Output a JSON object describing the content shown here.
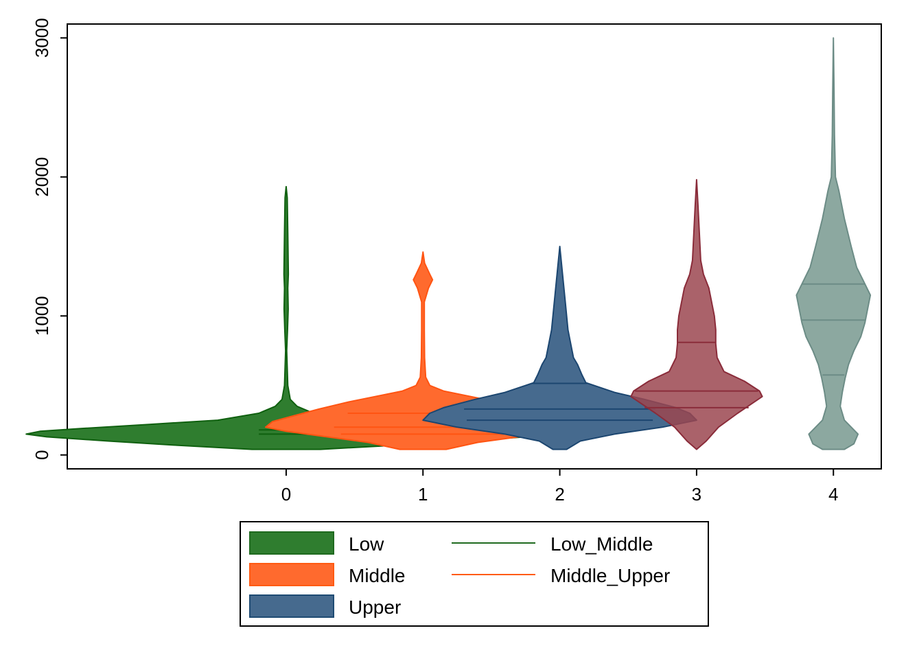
{
  "chart_data": {
    "type": "violin",
    "title": "",
    "xlabel": "",
    "ylabel": "",
    "xlim": [
      -1.6,
      4.35
    ],
    "ylim": [
      -100,
      3100
    ],
    "x_ticks": [
      0,
      1,
      2,
      3,
      4
    ],
    "y_ticks": [
      0,
      1000,
      2000,
      3000
    ],
    "grid": false,
    "legend_position": "bottom",
    "legend": [
      {
        "label": "Low",
        "kind": "fill",
        "color": "#2f7d2f",
        "edge": "#1f6a1f"
      },
      {
        "label": "Middle",
        "kind": "fill",
        "color": "#ff6a2e",
        "edge": "#ff5a12"
      },
      {
        "label": "Upper",
        "kind": "fill",
        "color": "#466a8e",
        "edge": "#1f4b73"
      },
      {
        "label": "Low_Middle",
        "kind": "line",
        "color": "#1f6a1f"
      },
      {
        "label": "Middle_Upper",
        "kind": "line",
        "color": "#ff5a12"
      }
    ],
    "violins": [
      {
        "x": 0,
        "fill": "#2f7d2f",
        "edge": "#0f600f",
        "opacity": 1.0,
        "profile": [
          [
            1930,
            0
          ],
          [
            1850,
            0.008
          ],
          [
            1600,
            0.012
          ],
          [
            1300,
            0.016
          ],
          [
            1200,
            0.012
          ],
          [
            1050,
            0.015
          ],
          [
            900,
            0.01
          ],
          [
            750,
            0.004
          ],
          [
            500,
            0.012
          ],
          [
            400,
            0.03
          ],
          [
            350,
            0.08
          ],
          [
            300,
            0.2
          ],
          [
            250,
            0.5
          ],
          [
            220,
            1.0
          ],
          [
            190,
            1.5
          ],
          [
            170,
            1.8
          ],
          [
            150,
            1.9
          ],
          [
            130,
            1.75
          ],
          [
            100,
            1.3
          ],
          [
            70,
            0.8
          ],
          [
            40,
            0.25
          ],
          [
            40,
            0
          ]
        ],
        "lines": [
          {
            "y": 180,
            "half": 0.2
          },
          {
            "y": 150,
            "half": 0.2
          }
        ]
      },
      {
        "x": 1,
        "fill": "#ff6a2e",
        "edge": "#ff5412",
        "opacity": 1.0,
        "profile": [
          [
            1460,
            0
          ],
          [
            1380,
            0.012
          ],
          [
            1300,
            0.05
          ],
          [
            1260,
            0.07
          ],
          [
            1200,
            0.04
          ],
          [
            1100,
            0.01
          ],
          [
            900,
            0.01
          ],
          [
            700,
            0.012
          ],
          [
            560,
            0.02
          ],
          [
            500,
            0.05
          ],
          [
            460,
            0.15
          ],
          [
            420,
            0.35
          ],
          [
            380,
            0.55
          ],
          [
            330,
            0.76
          ],
          [
            280,
            0.95
          ],
          [
            240,
            1.1
          ],
          [
            200,
            1.15
          ],
          [
            170,
            1.0
          ],
          [
            130,
            0.7
          ],
          [
            90,
            0.4
          ],
          [
            40,
            0.17
          ],
          [
            40,
            0
          ]
        ],
        "lines": [
          {
            "y": 300,
            "half": 0.55
          },
          {
            "y": 200,
            "half": 0.65
          },
          {
            "y": 150,
            "half": 0.6
          }
        ]
      },
      {
        "x": 2,
        "fill": "#466a8e",
        "edge": "#1c4670",
        "opacity": 1.0,
        "profile": [
          [
            1500,
            0
          ],
          [
            1300,
            0.02
          ],
          [
            1100,
            0.04
          ],
          [
            900,
            0.06
          ],
          [
            800,
            0.08
          ],
          [
            700,
            0.1
          ],
          [
            650,
            0.13
          ],
          [
            580,
            0.16
          ],
          [
            520,
            0.19
          ],
          [
            450,
            0.4
          ],
          [
            400,
            0.62
          ],
          [
            340,
            0.85
          ],
          [
            300,
            0.95
          ],
          [
            250,
            1.0
          ],
          [
            200,
            0.75
          ],
          [
            150,
            0.4
          ],
          [
            100,
            0.15
          ],
          [
            40,
            0.05
          ],
          [
            40,
            0
          ]
        ],
        "lines": [
          {
            "y": 515,
            "half": 0.2
          },
          {
            "y": 330,
            "half": 0.7
          },
          {
            "y": 250,
            "half": 0.68
          }
        ]
      },
      {
        "x": 3,
        "fill": "#9b4650",
        "edge": "#8a2c3a",
        "opacity": 0.85,
        "profile": [
          [
            1980,
            0
          ],
          [
            1800,
            0.01
          ],
          [
            1600,
            0.02
          ],
          [
            1400,
            0.03
          ],
          [
            1300,
            0.05
          ],
          [
            1200,
            0.09
          ],
          [
            1000,
            0.13
          ],
          [
            900,
            0.14
          ],
          [
            800,
            0.14
          ],
          [
            700,
            0.15
          ],
          [
            600,
            0.2
          ],
          [
            530,
            0.35
          ],
          [
            460,
            0.46
          ],
          [
            420,
            0.48
          ],
          [
            380,
            0.42
          ],
          [
            300,
            0.3
          ],
          [
            200,
            0.16
          ],
          [
            100,
            0.07
          ],
          [
            40,
            0
          ],
          [
            40,
            0
          ]
        ],
        "lines": [
          {
            "y": 810,
            "half": 0.14
          },
          {
            "y": 460,
            "half": 0.45
          },
          {
            "y": 340,
            "half": 0.38
          }
        ]
      },
      {
        "x": 4,
        "fill": "#7f9e96",
        "edge": "#6c8c86",
        "opacity": 0.9,
        "profile": [
          [
            3000,
            0
          ],
          [
            2600,
            0.005
          ],
          [
            2300,
            0.008
          ],
          [
            2000,
            0.015
          ],
          [
            1900,
            0.04
          ],
          [
            1700,
            0.08
          ],
          [
            1500,
            0.13
          ],
          [
            1350,
            0.17
          ],
          [
            1250,
            0.22
          ],
          [
            1150,
            0.27
          ],
          [
            1050,
            0.25
          ],
          [
            950,
            0.23
          ],
          [
            850,
            0.2
          ],
          [
            750,
            0.15
          ],
          [
            650,
            0.11
          ],
          [
            550,
            0.085
          ],
          [
            450,
            0.065
          ],
          [
            350,
            0.05
          ],
          [
            250,
            0.08
          ],
          [
            150,
            0.18
          ],
          [
            80,
            0.15
          ],
          [
            40,
            0.08
          ],
          [
            40,
            0
          ]
        ],
        "lines": [
          {
            "y": 1230,
            "half": 0.23
          },
          {
            "y": 970,
            "half": 0.23
          },
          {
            "y": 575,
            "half": 0.08
          }
        ]
      }
    ]
  }
}
